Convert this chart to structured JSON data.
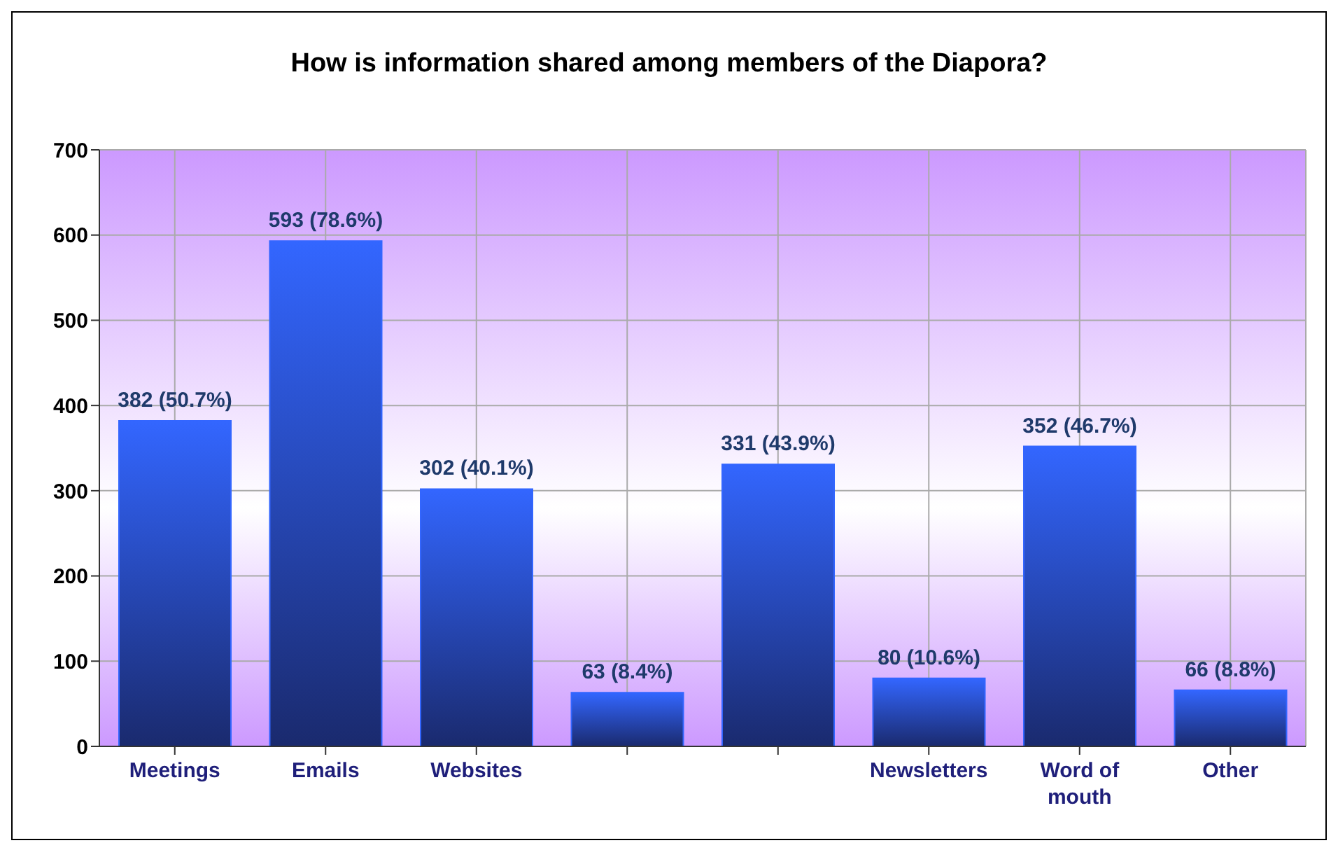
{
  "chart_data": {
    "type": "bar",
    "title": "How is information shared among members of the Diapora?",
    "categories": [
      "Meetings",
      "Emails",
      "Websites",
      null,
      null,
      "Newsletters",
      "Word of mouth",
      "Other"
    ],
    "values": [
      382,
      593,
      302,
      63,
      331,
      80,
      352,
      66
    ],
    "value_labels": [
      "382 (50.7%)",
      "593 (78.6%)",
      "302 (40.1%)",
      "63 (8.4%)",
      "331 (43.9%)",
      "80 (10.6%)",
      "352 (46.7%)",
      "66 (8.8%)"
    ],
    "color": "#3366ff",
    "ylim": [
      0,
      700
    ],
    "yticks": [
      0,
      100,
      200,
      300,
      400,
      500,
      600,
      700
    ],
    "grid": true,
    "legend": false
  }
}
